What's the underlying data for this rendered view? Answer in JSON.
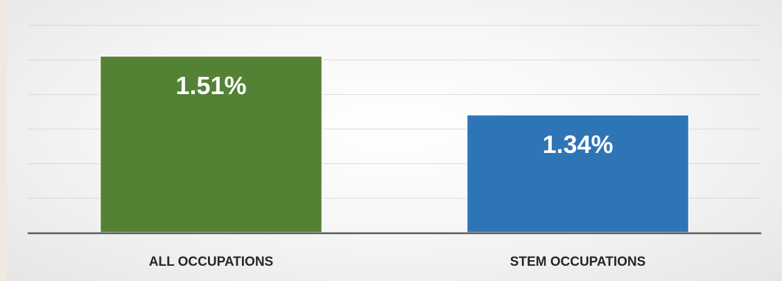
{
  "chart_data": {
    "type": "bar",
    "categories": [
      "ALL OCCUPATIONS",
      "STEM OCCUPATIONS"
    ],
    "values": [
      1.51,
      1.34
    ],
    "data_labels": [
      "1.51%",
      "1.34%"
    ],
    "ylim": [
      1.0,
      1.6
    ],
    "grid": true,
    "legend": "none",
    "title": "",
    "xlabel": "",
    "ylabel": ""
  },
  "colors": {
    "bars": [
      "#548235",
      "#2e75b6"
    ],
    "gridline": "#d9d9d9",
    "axis": "#595959"
  }
}
